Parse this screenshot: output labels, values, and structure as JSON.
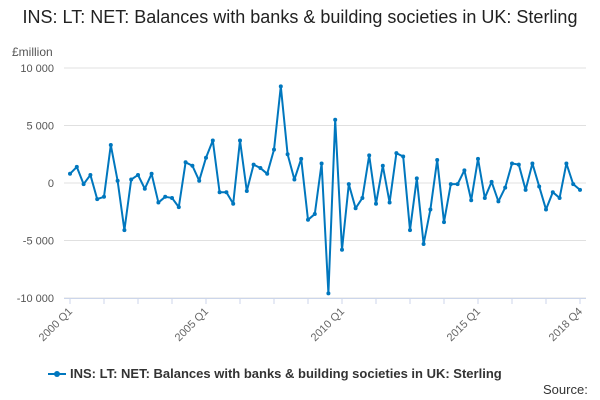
{
  "chart_data": {
    "type": "line",
    "title": "INS: LT: NET: Balances with banks & building societies in UK: Sterling",
    "ylabel": "£million",
    "ylim": [
      -10000,
      10000
    ],
    "yticks": [
      10000,
      5000,
      0,
      -5000,
      -10000
    ],
    "ytick_labels": [
      "10 000",
      "5 000",
      "0",
      "-5 000",
      "-10 000"
    ],
    "x_start": "2000 Q1",
    "x_end": "2018 Q4",
    "xtick_labels": [
      "2000 Q1",
      "2005 Q1",
      "2010 Q1",
      "2015 Q1",
      "2018 Q4"
    ],
    "xtick_index": [
      0,
      20,
      40,
      60,
      75
    ],
    "grid": true,
    "legend_placement": "bottom",
    "color": "#0077be",
    "series": [
      {
        "name": "INS: LT: NET: Balances with banks & building societies in UK: Sterling",
        "values": [
          800,
          1400,
          -100,
          700,
          -1400,
          -1200,
          3300,
          200,
          -4100,
          300,
          700,
          -500,
          800,
          -1700,
          -1200,
          -1300,
          -2100,
          1800,
          1500,
          200,
          2200,
          3700,
          -800,
          -800,
          -1800,
          3700,
          -700,
          1600,
          1300,
          800,
          2900,
          8400,
          2500,
          300,
          2100,
          -3200,
          -2700,
          1700,
          -9600,
          5500,
          -5800,
          -100,
          -2200,
          -1300,
          2400,
          -1800,
          1500,
          -1700,
          2600,
          2300,
          -4100,
          400,
          -5300,
          -2300,
          2000,
          -3400,
          -100,
          -100,
          1100,
          -1500,
          2100,
          -1300,
          100,
          -1600,
          -400,
          1700,
          1600,
          -600,
          1700,
          -300,
          -2300,
          -800,
          -1300,
          1700,
          -100,
          -600
        ]
      }
    ]
  },
  "source_label": "Source:"
}
